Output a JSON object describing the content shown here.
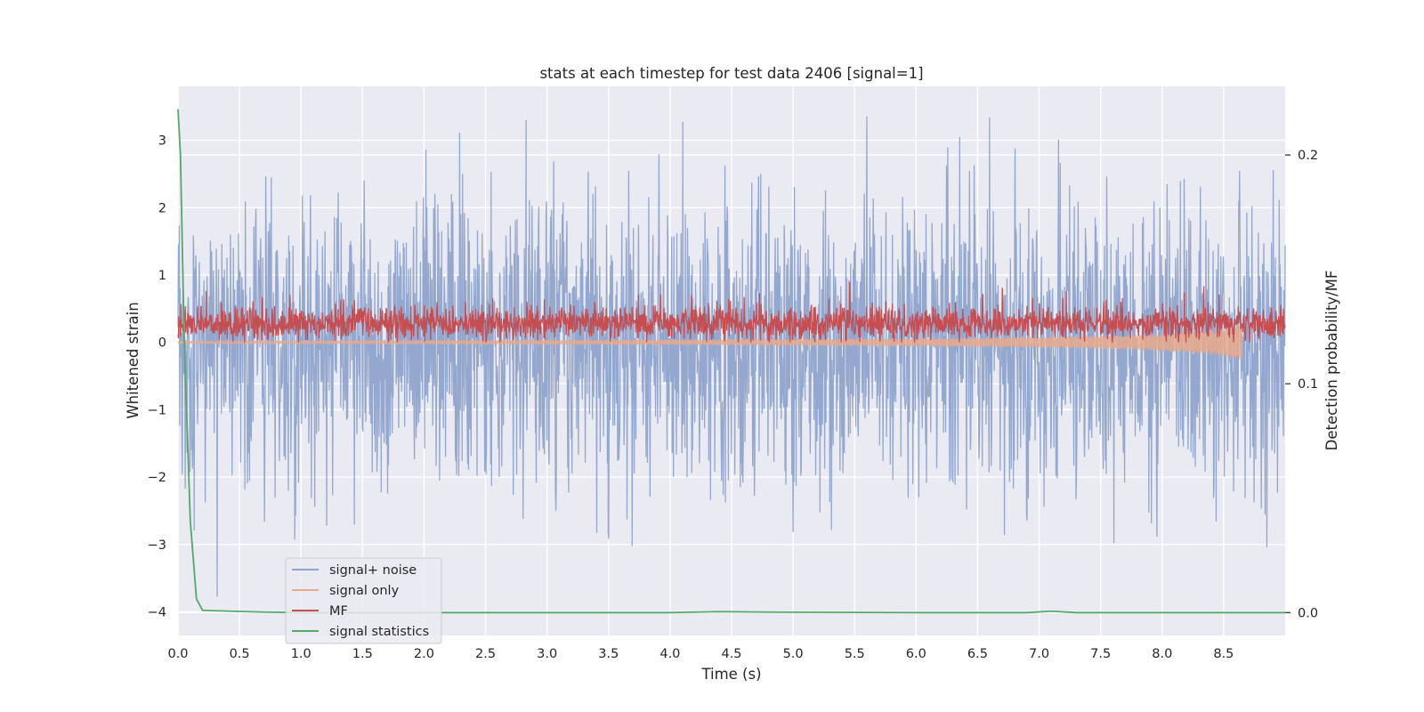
{
  "chart_data": {
    "type": "line",
    "title": "stats at each timestep for test data 2406 [signal=1]",
    "xlabel": "Time (s)",
    "ylabel": "Whitened strain",
    "ylabel_right": "Detection probability/MF",
    "xlim": [
      0.0,
      9.0
    ],
    "ylim": [
      -4.35,
      3.8
    ],
    "ylim_right": [
      -0.01,
      0.23
    ],
    "x_ticks": [
      0.0,
      0.5,
      1.0,
      1.5,
      2.0,
      2.5,
      3.0,
      3.5,
      4.0,
      4.5,
      5.0,
      5.5,
      6.0,
      6.5,
      7.0,
      7.5,
      8.0,
      8.5
    ],
    "x_tick_labels": [
      "0.0",
      "0.5",
      "1.0",
      "1.5",
      "2.0",
      "2.5",
      "3.0",
      "3.5",
      "4.0",
      "4.5",
      "5.0",
      "5.5",
      "6.0",
      "6.5",
      "7.0",
      "7.5",
      "8.0",
      "8.5"
    ],
    "y_ticks": [
      -4,
      -3,
      -2,
      -1,
      0,
      1,
      2,
      3
    ],
    "y_tick_labels": [
      "−4",
      "−3",
      "−2",
      "−1",
      "0",
      "1",
      "2",
      "3"
    ],
    "y_ticks_right": [
      0.0,
      0.1,
      0.2
    ],
    "y_tick_labels_right": [
      "0.0",
      "0.1",
      "0.2"
    ],
    "grid": true,
    "legend_position": "lower-left",
    "series": [
      {
        "name": "signal+ noise",
        "axis": "left",
        "color": "#8fa4cc",
        "description": "whitened noisy strain, fluctuates roughly between -3.8 and 3.4",
        "amplitude_range": [
          -3.8,
          3.4
        ],
        "noise_std": 1.05
      },
      {
        "name": "signal only",
        "axis": "left",
        "color": "#e8a98c",
        "description": "chirp signal growing in amplitude until about 8.65 s",
        "envelope": {
          "t": [
            0.0,
            2.0,
            4.0,
            5.0,
            6.0,
            7.0,
            7.5,
            8.0,
            8.3,
            8.5,
            8.62,
            8.65
          ],
          "amp": [
            0.02,
            0.03,
            0.04,
            0.05,
            0.06,
            0.08,
            0.1,
            0.13,
            0.17,
            0.22,
            0.3,
            0.3
          ]
        },
        "end_time": 8.65
      },
      {
        "name": "MF",
        "axis": "left",
        "color": "#c44e52",
        "description": "matched filter output, mostly between 0 and 0.8, peak near 1.0",
        "amplitude_range": [
          0.0,
          1.0
        ],
        "mean": 0.28
      },
      {
        "name": "signal statistics",
        "axis": "right",
        "color": "#55a868",
        "x": [
          0.0,
          0.02,
          0.05,
          0.1,
          0.15,
          0.2,
          0.3,
          0.5,
          0.7,
          1.0,
          2.0,
          3.0,
          4.0,
          4.4,
          4.8,
          6.0,
          6.9,
          7.1,
          7.3,
          8.0,
          9.0
        ],
        "y": [
          0.22,
          0.2,
          0.12,
          0.04,
          0.006,
          0.001,
          0.0008,
          0.0005,
          0.0002,
          0.0,
          0.0,
          0.0,
          0.0,
          0.0004,
          0.0002,
          0.0,
          0.0,
          0.0006,
          0.0,
          0.0,
          0.0
        ]
      }
    ]
  }
}
